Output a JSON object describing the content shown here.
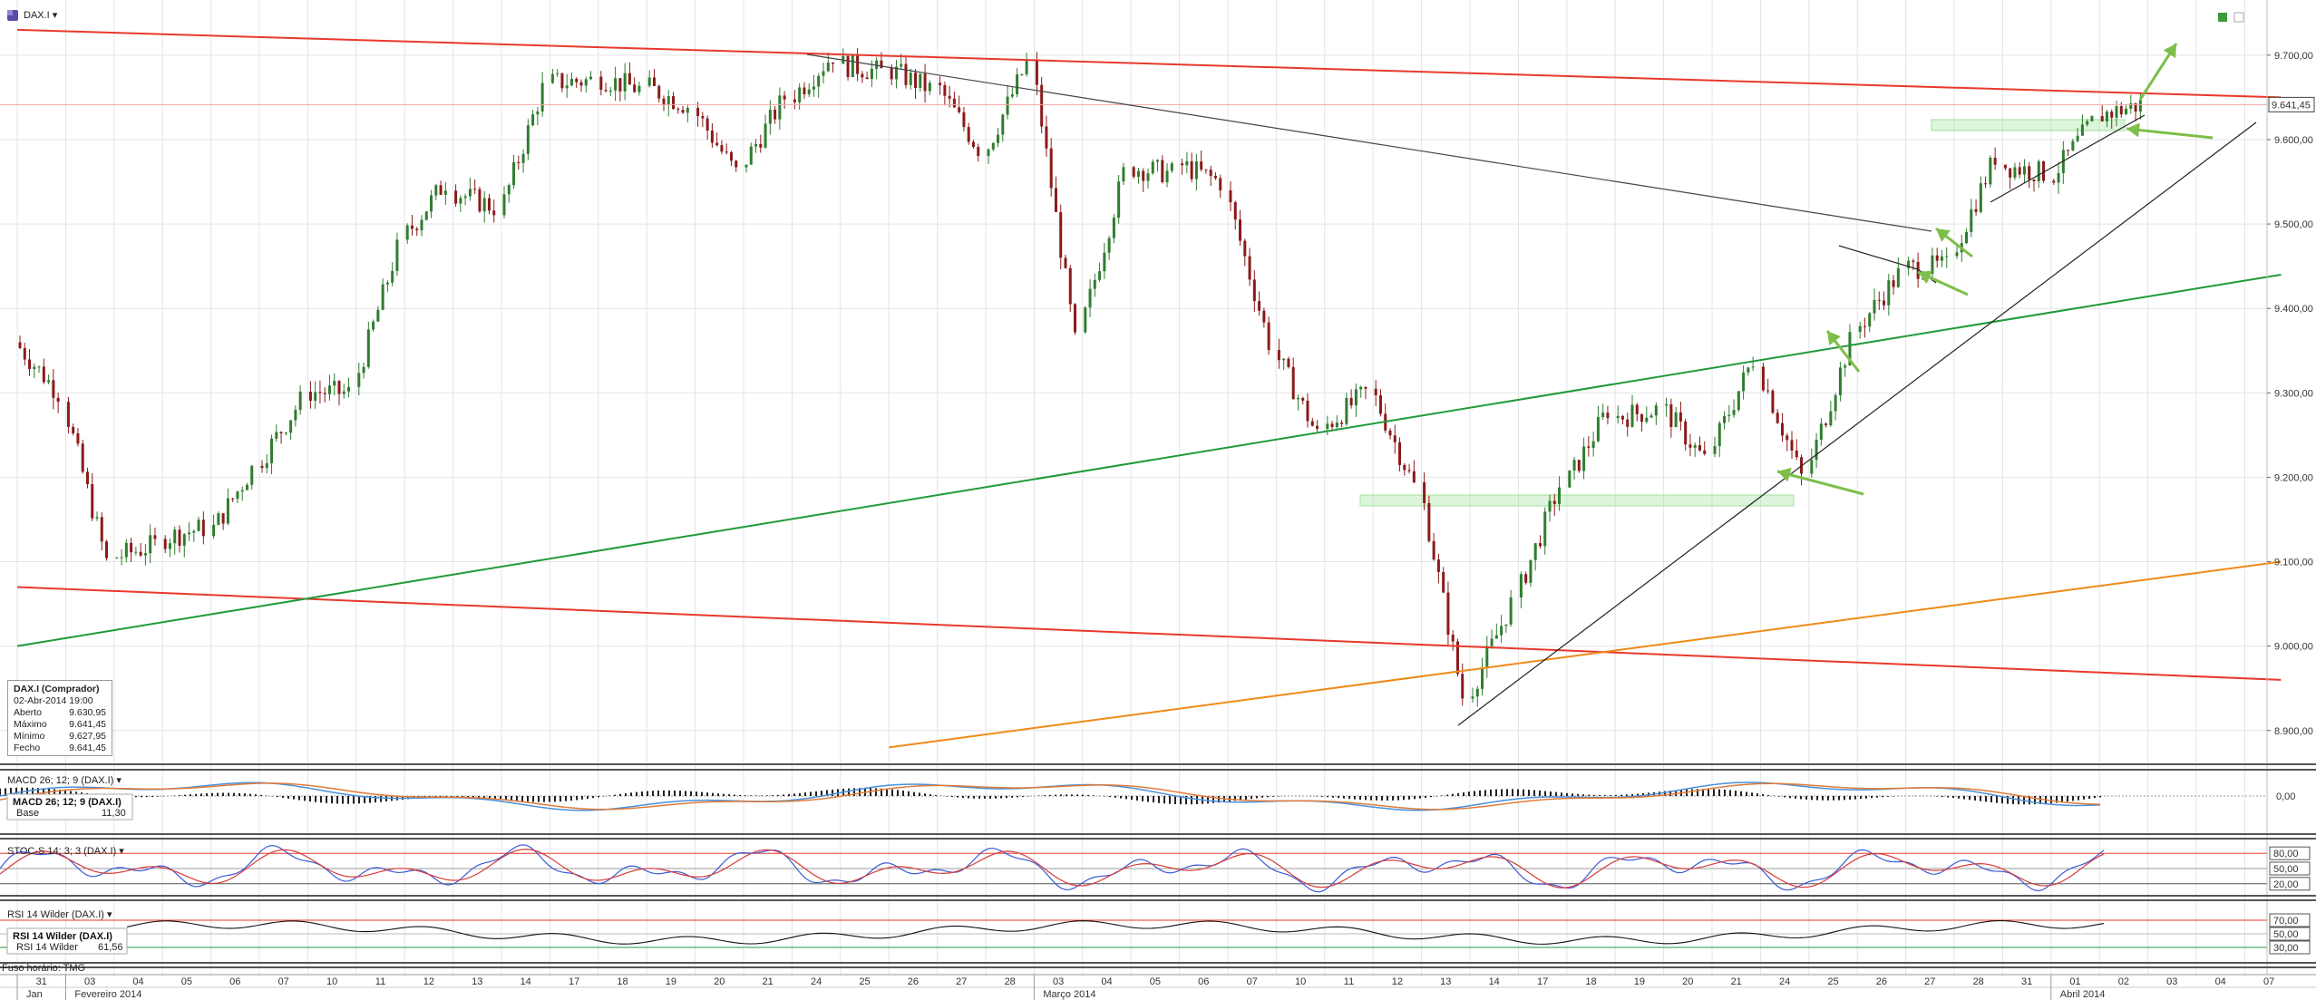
{
  "header": {
    "symbol": "DAX.I",
    "dropdown_glyph": "▾"
  },
  "info_box": {
    "title": "DAX.I (Comprador)",
    "datetime": "02-Abr-2014 19:00",
    "rows": [
      {
        "label": "Aberto",
        "value": "9.630,95"
      },
      {
        "label": "Máximo",
        "value": "9.641,45"
      },
      {
        "label": "Mínimo",
        "value": "9.627,95"
      },
      {
        "label": "Fecho",
        "value": "9.641,45"
      }
    ]
  },
  "price_axis": {
    "ticks": [
      "9.700,00",
      "9.600,00",
      "9.500,00",
      "9.400,00",
      "9.300,00",
      "9.200,00",
      "9.100,00",
      "9.000,00",
      "8.900,00"
    ],
    "tick_values": [
      9700,
      9600,
      9500,
      9400,
      9300,
      9200,
      9100,
      9000,
      8900
    ],
    "last_price_label": "9.641,45",
    "ylim": [
      8860,
      9760
    ]
  },
  "panels": {
    "macd": {
      "title": "MACD 26; 12; 9 (DAX.I)",
      "legend_title": "MACD 26; 12; 9 (DAX.I)",
      "legend_line": "Base",
      "legend_value": "11,30",
      "tick": "0,00"
    },
    "stoch": {
      "title": "STOC-S 14; 3; 3 (DAX.I)",
      "ticks": [
        "80,00",
        "50,00",
        "20,00"
      ]
    },
    "rsi": {
      "title": "RSI 14 Wilder (DAX.I)",
      "legend_title": "RSI 14 Wilder (DAX.I)",
      "legend_line": "RSI 14 Wilder",
      "legend_value": "61,56",
      "ticks": [
        "70,00",
        "50,00",
        "30,00"
      ],
      "timezone": "Fuso horário: TMG"
    }
  },
  "time_axis": {
    "days": [
      "31",
      "03",
      "04",
      "05",
      "06",
      "07",
      "10",
      "11",
      "12",
      "13",
      "14",
      "17",
      "18",
      "19",
      "20",
      "21",
      "24",
      "25",
      "26",
      "27",
      "28",
      "03",
      "04",
      "05",
      "06",
      "07",
      "10",
      "11",
      "12",
      "13",
      "14",
      "17",
      "18",
      "19",
      "20",
      "21",
      "24",
      "25",
      "26",
      "27",
      "28",
      "31",
      "01",
      "02",
      "03",
      "04",
      "07"
    ],
    "months": [
      {
        "label": "Jan",
        "day_index": 0
      },
      {
        "label": "Fevereiro 2014",
        "day_index": 1
      },
      {
        "label": "Março 2014",
        "day_index": 21
      },
      {
        "label": "Abril 2014",
        "day_index": 42
      }
    ]
  },
  "colors": {
    "up": "#2f7d2f",
    "down": "#8b1a1a",
    "resistance_red": "#e8392b",
    "support_green": "#1f9a3a",
    "orange": "#ef8a17",
    "arrow_green": "#7dbf4a",
    "zone_green": "#9fe39a"
  },
  "chart_data": {
    "type": "candlestick",
    "title": "DAX.I",
    "interval": "hourly",
    "last": {
      "date": "02-Abr-2014 19:00",
      "open": 9630.95,
      "high": 9641.45,
      "low": 9627.95,
      "close": 9641.45
    },
    "approx_closes_by_day": [
      {
        "day": "31 Jan",
        "close": 9300
      },
      {
        "day": "03 Fev",
        "close": 9100
      },
      {
        "day": "04 Fev",
        "close": 9120
      },
      {
        "day": "05 Fev",
        "close": 9140
      },
      {
        "day": "06 Fev",
        "close": 9210
      },
      {
        "day": "07 Fev",
        "close": 9290
      },
      {
        "day": "10 Fev",
        "close": 9300
      },
      {
        "day": "11 Fev",
        "close": 9470
      },
      {
        "day": "12 Fev",
        "close": 9550
      },
      {
        "day": "13 Fev",
        "close": 9520
      },
      {
        "day": "14 Fev",
        "close": 9660
      },
      {
        "day": "17 Fev",
        "close": 9670
      },
      {
        "day": "18 Fev",
        "close": 9660
      },
      {
        "day": "19 Fev",
        "close": 9640
      },
      {
        "day": "20 Fev",
        "close": 9560
      },
      {
        "day": "21 Fev",
        "close": 9650
      },
      {
        "day": "24 Fev",
        "close": 9700
      },
      {
        "day": "25 Fev",
        "close": 9680
      },
      {
        "day": "26 Fev",
        "close": 9660
      },
      {
        "day": "27 Fev",
        "close": 9590
      },
      {
        "day": "28 Fev",
        "close": 9690
      },
      {
        "day": "03 Mar",
        "close": 9360
      },
      {
        "day": "04 Mar",
        "close": 9560
      },
      {
        "day": "05 Mar",
        "close": 9560
      },
      {
        "day": "06 Mar",
        "close": 9550
      },
      {
        "day": "07 Mar",
        "close": 9360
      },
      {
        "day": "10 Mar",
        "close": 9250
      },
      {
        "day": "11 Mar",
        "close": 9300
      },
      {
        "day": "12 Mar",
        "close": 9190
      },
      {
        "day": "13 Mar",
        "close": 8940
      },
      {
        "day": "14 Mar",
        "close": 9050
      },
      {
        "day": "17 Mar",
        "close": 9190
      },
      {
        "day": "18 Mar",
        "close": 9280
      },
      {
        "day": "19 Mar",
        "close": 9280
      },
      {
        "day": "20 Mar",
        "close": 9220
      },
      {
        "day": "21 Mar",
        "close": 9340
      },
      {
        "day": "24 Mar",
        "close": 9200
      },
      {
        "day": "25 Mar",
        "close": 9360
      },
      {
        "day": "26 Mar",
        "close": 9440
      },
      {
        "day": "27 Mar",
        "close": 9450
      },
      {
        "day": "28 Mar",
        "close": 9580
      },
      {
        "day": "31 Mar",
        "close": 9560
      },
      {
        "day": "01 Abr",
        "close": 9620
      },
      {
        "day": "02 Abr",
        "close": 9641.45
      }
    ],
    "trendlines": [
      {
        "name": "upper red",
        "from": {
          "day": 0,
          "price": 9730
        },
        "to": {
          "day": 46,
          "price": 9650
        }
      },
      {
        "name": "lower red",
        "from": {
          "day": 0,
          "price": 9070
        },
        "to": {
          "day": 46,
          "price": 8960
        }
      },
      {
        "name": "green",
        "from": {
          "day": 0,
          "price": 9000
        },
        "to": {
          "day": 46,
          "price": 9440
        }
      },
      {
        "name": "orange",
        "from": {
          "day": 18,
          "price": 8880
        },
        "to": {
          "day": 46,
          "price": 9100
        }
      }
    ],
    "ylim": [
      8860,
      9760
    ],
    "grid": true
  }
}
